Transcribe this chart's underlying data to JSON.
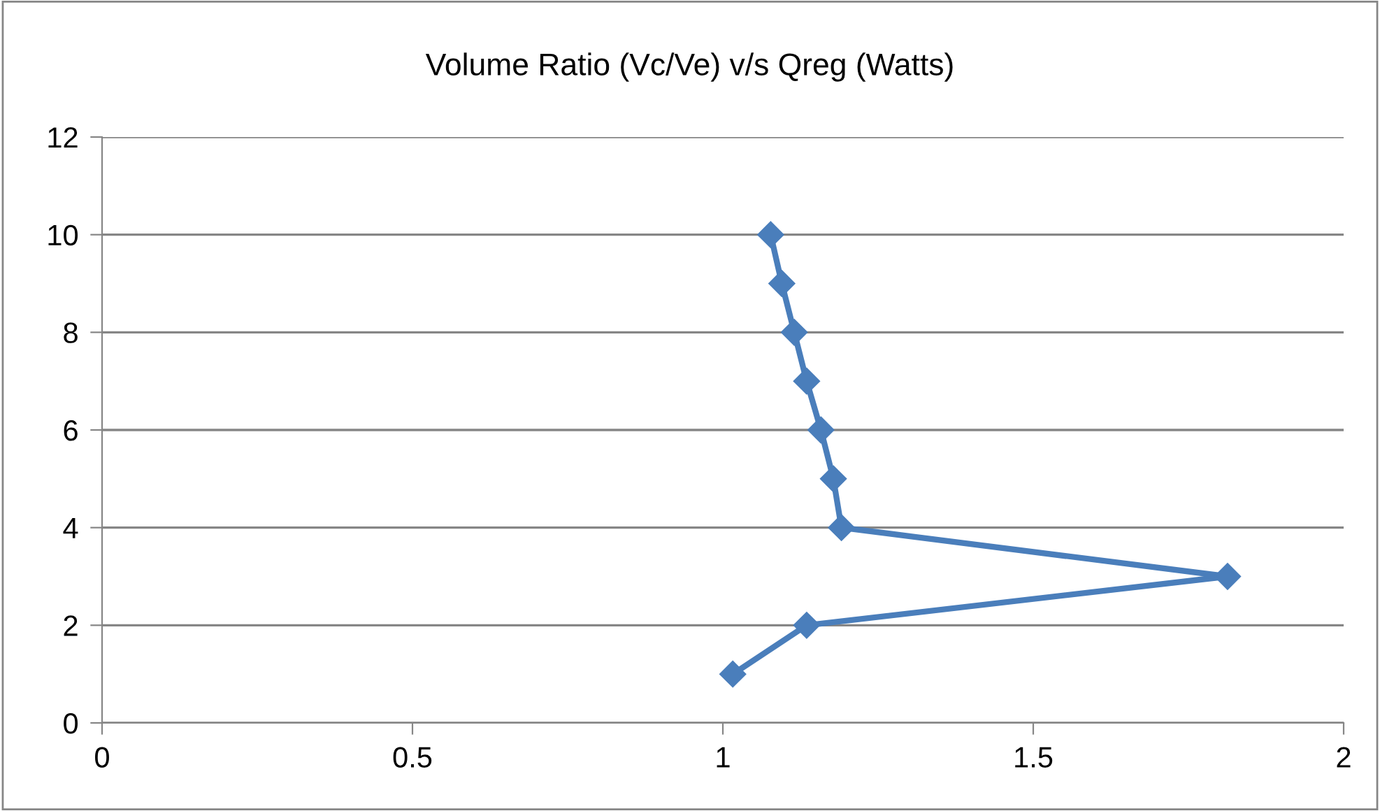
{
  "chart_data": {
    "type": "line",
    "title": "Volume Ratio (Vc/Ve) v/s Qreg (Watts)",
    "series": [
      {
        "color": "#4a7ebb",
        "x": [
          1.016,
          1.135,
          1.813,
          1.191,
          1.178,
          1.158,
          1.135,
          1.115,
          1.095,
          1.077
        ],
        "values": [
          1,
          2,
          3,
          4,
          5,
          6,
          7,
          8,
          9,
          10
        ]
      }
    ],
    "xlim": [
      0,
      2
    ],
    "xticks": [
      0,
      0.5,
      1,
      1.5,
      2
    ],
    "ylim": [
      0,
      12
    ],
    "yticks": [
      0,
      2,
      4,
      6,
      8,
      10,
      12
    ],
    "grid": "y",
    "marker": "diamond",
    "line_style": "solid",
    "legend": false
  }
}
